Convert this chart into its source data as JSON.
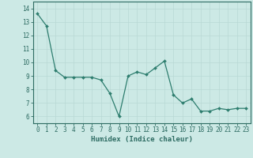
{
  "x": [
    0,
    1,
    2,
    3,
    4,
    5,
    6,
    7,
    8,
    9,
    10,
    11,
    12,
    13,
    14,
    15,
    16,
    17,
    18,
    19,
    20,
    21,
    22,
    23
  ],
  "y": [
    13.6,
    12.7,
    9.4,
    8.9,
    8.9,
    8.9,
    8.9,
    8.7,
    7.7,
    6.0,
    9.0,
    9.3,
    9.1,
    9.6,
    10.1,
    7.6,
    7.0,
    7.3,
    6.4,
    6.4,
    6.6,
    6.5,
    6.6,
    6.6
  ],
  "line_color": "#2d7d6e",
  "marker_color": "#2d7d6e",
  "bg_color": "#cce9e5",
  "grid_color": "#b8d8d4",
  "axis_color": "#2d6b62",
  "tick_color": "#2d6b62",
  "xlabel": "Humidex (Indice chaleur)",
  "xlim": [
    -0.5,
    23.5
  ],
  "ylim": [
    5.5,
    14.5
  ],
  "yticks": [
    6,
    7,
    8,
    9,
    10,
    11,
    12,
    13,
    14
  ],
  "xticks": [
    0,
    1,
    2,
    3,
    4,
    5,
    6,
    7,
    8,
    9,
    10,
    11,
    12,
    13,
    14,
    15,
    16,
    17,
    18,
    19,
    20,
    21,
    22,
    23
  ],
  "xlabel_fontsize": 6.5,
  "tick_fontsize": 5.5
}
